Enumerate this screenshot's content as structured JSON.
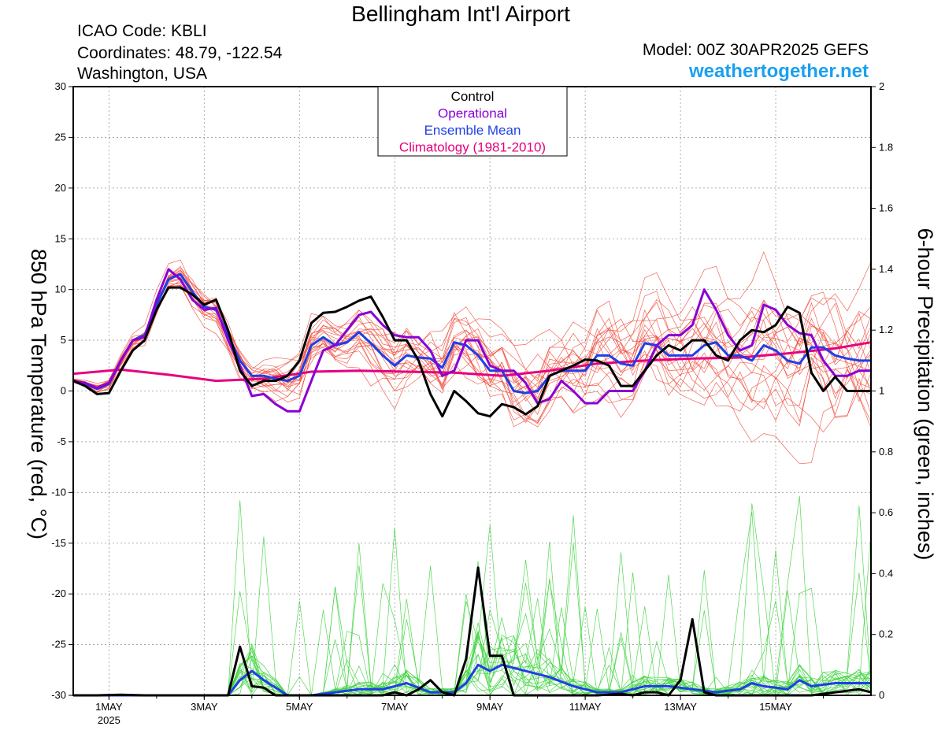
{
  "header": {
    "title": "Bellingham Int'l Airport",
    "icao": "ICAO Code: KBLI",
    "coordinates": "Coordinates: 48.79, -122.54",
    "region": "Washington, USA",
    "model": "Model: 00Z 30APR2025 GEFS",
    "site": "weathertogether.net"
  },
  "colors": {
    "control": "#000000",
    "operational": "#8a00d4",
    "ensemble_mean": "#1f3fe6",
    "climatology": "#e6007e",
    "members_temp": "#f04a3a",
    "members_precip": "#3fd43f"
  },
  "chart_data": {
    "type": "line",
    "x_unit": "day",
    "xlim": [
      0,
      16.75
    ],
    "x_note": "",
    "x_ticks": [
      {
        "x": 0.75,
        "label": "1MAY",
        "sub": "2025"
      },
      {
        "x": 2.75,
        "label": "3MAY"
      },
      {
        "x": 4.75,
        "label": "5MAY"
      },
      {
        "x": 6.75,
        "label": "7MAY"
      },
      {
        "x": 8.75,
        "label": "9MAY"
      },
      {
        "x": 10.75,
        "label": "11MAY"
      },
      {
        "x": 12.75,
        "label": "13MAY"
      },
      {
        "x": 14.75,
        "label": "15MAY"
      }
    ],
    "ylabel_left": "850 hPa Temperature (red, °C)",
    "ylabel_right": "6-hour Precipitation (green, inches)",
    "ylim_left": [
      -30,
      30
    ],
    "yticks_left": [
      30,
      25,
      20,
      15,
      10,
      5,
      0,
      -5,
      -10,
      -15,
      -20,
      -25,
      -30
    ],
    "ylim_right": [
      0,
      2
    ],
    "yticks_right": [
      "2",
      "1.8",
      "1.6",
      "1.4",
      "1.2",
      "1",
      "0.8",
      "0.6",
      "0.4",
      "0.2",
      "0"
    ],
    "grid": true,
    "legend": {
      "placement": "top-center",
      "entries": [
        {
          "label": "Control",
          "color": "#000000"
        },
        {
          "label": "Operational",
          "color": "#8a00d4"
        },
        {
          "label": "Ensemble Mean",
          "color": "#1f3fe6"
        },
        {
          "label": "Climatology (1981-2010)",
          "color": "#e6007e"
        }
      ]
    },
    "series": [
      {
        "name": "Control",
        "x": [
          0,
          0.25,
          0.5,
          0.75,
          1,
          1.25,
          1.5,
          1.75,
          2,
          2.25,
          2.5,
          2.75,
          3,
          3.25,
          3.5,
          3.75,
          4,
          4.25,
          4.5,
          4.75,
          5,
          5.25,
          5.5,
          5.75,
          6,
          6.25,
          6.5,
          6.75,
          7,
          7.25,
          7.5,
          7.75,
          8,
          8.25,
          8.5,
          8.75,
          9,
          9.25,
          9.5,
          9.75,
          10,
          10.25,
          10.5,
          10.75,
          11,
          11.25,
          11.5,
          11.75,
          12,
          12.25,
          12.5,
          12.75,
          13,
          13.25,
          13.5,
          13.75,
          14,
          14.25,
          14.5,
          14.75,
          15,
          15.25,
          15.5,
          15.75,
          16,
          16.25,
          16.5,
          16.75
        ],
        "y": [
          1,
          0.5,
          -0.3,
          -0.2,
          2,
          4,
          5,
          8,
          10.2,
          10.2,
          9.5,
          8.5,
          9,
          6,
          2,
          0.5,
          1,
          1,
          1.5,
          3,
          6.7,
          7.7,
          7.8,
          8.3,
          8.9,
          9.3,
          7.3,
          5,
          5,
          3,
          -0.3,
          -2.5,
          0,
          -1,
          -2.2,
          -2.5,
          -1.3,
          -1.6,
          -2.3,
          -1.5,
          1.5,
          2,
          2.5,
          3.1,
          3,
          2.5,
          0.5,
          0.5,
          2,
          3.5,
          4.5,
          4,
          5,
          5,
          3.5,
          3,
          5,
          6,
          5.8,
          6.5,
          8.3,
          7.7,
          1.8,
          0,
          1.4,
          0,
          0,
          0
        ]
      },
      {
        "name": "Operational",
        "x": [
          0,
          0.25,
          0.5,
          0.75,
          1,
          1.25,
          1.5,
          1.75,
          2,
          2.25,
          2.5,
          2.75,
          3,
          3.25,
          3.5,
          3.75,
          4,
          4.25,
          4.5,
          4.75,
          5,
          5.25,
          5.5,
          5.75,
          6,
          6.25,
          6.5,
          6.75,
          7,
          7.25,
          7.5,
          7.75,
          8,
          8.25,
          8.5,
          8.75,
          9,
          9.25,
          9.5,
          9.75,
          10,
          10.25,
          10.5,
          10.75,
          11,
          11.25,
          11.5,
          11.75,
          12,
          12.25,
          12.5,
          12.75,
          13,
          13.25,
          13.5,
          13.75,
          14,
          14.25,
          14.5,
          14.75,
          15,
          15.25,
          15.5,
          15.75,
          16,
          16.25,
          16.5,
          16.75
        ],
        "y": [
          1,
          0.8,
          0.3,
          0.8,
          3,
          5,
          5.3,
          9,
          12,
          11,
          9,
          8,
          8.2,
          5,
          2.5,
          -0.5,
          -0.3,
          -1.3,
          -2,
          -2,
          1,
          4,
          4.5,
          6,
          7.5,
          7.8,
          6.5,
          5.5,
          5.3,
          5.3,
          4,
          1.5,
          2,
          5,
          5,
          2.5,
          2,
          2,
          0.8,
          -1.2,
          -0.8,
          1,
          0,
          -1.2,
          -1.2,
          0,
          0,
          0,
          2,
          4.5,
          5.5,
          5.5,
          6.5,
          10,
          8,
          5.5,
          4,
          4.5,
          8.5,
          8,
          6.5,
          5.7,
          5.5,
          3,
          1.5,
          1.5,
          2,
          2
        ]
      },
      {
        "name": "Ensemble Mean",
        "x": [
          0,
          0.25,
          0.5,
          0.75,
          1,
          1.25,
          1.5,
          1.75,
          2,
          2.25,
          2.5,
          2.75,
          3,
          3.25,
          3.5,
          3.75,
          4,
          4.25,
          4.5,
          4.75,
          5,
          5.25,
          5.5,
          5.75,
          6,
          6.25,
          6.5,
          6.75,
          7,
          7.25,
          7.5,
          7.75,
          8,
          8.25,
          8.5,
          8.75,
          9,
          9.25,
          9.5,
          9.75,
          10,
          10.25,
          10.5,
          10.75,
          11,
          11.25,
          11.5,
          11.75,
          12,
          12.25,
          12.5,
          12.75,
          13,
          13.25,
          13.5,
          13.75,
          14,
          14.25,
          14.5,
          14.75,
          15,
          15.25,
          15.5,
          15.75,
          16,
          16.25,
          16.5,
          16.75
        ],
        "y": [
          1,
          0.7,
          0.2,
          0.7,
          3,
          5,
          5.5,
          8.5,
          11,
          11.5,
          9.8,
          8.3,
          8,
          5.5,
          3,
          1.5,
          1.5,
          1.2,
          1,
          1.5,
          4.5,
          5.3,
          4.5,
          4.8,
          5.8,
          4.7,
          3.5,
          2.5,
          3.5,
          3.3,
          3.2,
          2.3,
          4.8,
          4.5,
          3.5,
          2,
          2,
          0,
          -0.2,
          0,
          1.5,
          2,
          2,
          2,
          3.5,
          3.5,
          2.7,
          2.5,
          4.7,
          4.5,
          3.5,
          3.5,
          3.5,
          4.5,
          4.8,
          3.5,
          3.5,
          3,
          4.5,
          4,
          3,
          2.7,
          4.3,
          4.3,
          3.5,
          3.2,
          3,
          3
        ]
      },
      {
        "name": "Climatology (1981-2010)",
        "x": [
          0,
          1,
          2,
          3,
          4,
          5,
          6,
          7,
          8,
          9,
          10,
          11,
          12,
          13,
          14,
          15,
          16,
          16.75
        ],
        "y": [
          1.7,
          2.1,
          1.6,
          1.0,
          1.2,
          1.9,
          2.0,
          1.9,
          1.8,
          1.5,
          2.0,
          2.7,
          3.0,
          3.2,
          3.3,
          3.7,
          4.2,
          4.8
        ]
      }
    ],
    "precipitation_series": [
      {
        "name": "Control",
        "x": [
          0,
          0.5,
          1,
          1.5,
          2,
          2.5,
          2.75,
          3,
          3.25,
          3.5,
          3.75,
          4,
          4.25,
          4.5,
          5,
          5.5,
          6,
          6.5,
          6.75,
          7,
          7.25,
          7.5,
          7.75,
          8,
          8.25,
          8.5,
          8.75,
          9,
          9.25,
          9.5,
          10,
          10.5,
          11,
          11.5,
          11.75,
          12,
          12.25,
          12.5,
          12.75,
          13,
          13.25,
          13.5,
          14,
          14.5,
          15,
          15.5,
          16,
          16.5,
          16.75
        ],
        "y": [
          0,
          0,
          0.002,
          0,
          0,
          0,
          0,
          0,
          0,
          0.16,
          0.03,
          0.025,
          0,
          0,
          0,
          0,
          0,
          0,
          0.01,
          0,
          0.02,
          0.05,
          0.01,
          0,
          0.12,
          0.42,
          0.13,
          0.13,
          0,
          0,
          0,
          0,
          0,
          0.005,
          0,
          0.01,
          0.01,
          0,
          0.05,
          0.25,
          0.01,
          0,
          0,
          0,
          0,
          0,
          0.01,
          0.02,
          0.01
        ]
      },
      {
        "name": "Ensemble Mean",
        "x": [
          0,
          1,
          2,
          3,
          3.25,
          3.5,
          3.75,
          4,
          4.5,
          5,
          5.5,
          6,
          6.5,
          7,
          7.5,
          8,
          8.25,
          8.5,
          8.75,
          9,
          9.5,
          10,
          10.5,
          11,
          11.5,
          12,
          12.5,
          13,
          13.5,
          14,
          14.25,
          14.5,
          15,
          15.25,
          15.5,
          16,
          16.5,
          16.75
        ],
        "y": [
          0,
          0,
          0,
          0,
          0,
          0.05,
          0.08,
          0.05,
          0,
          0,
          0.01,
          0.02,
          0.02,
          0.04,
          0.01,
          0.01,
          0.04,
          0.1,
          0.08,
          0.1,
          0.08,
          0.06,
          0.03,
          0.01,
          0.01,
          0.03,
          0.03,
          0.02,
          0.01,
          0.02,
          0.04,
          0.03,
          0.02,
          0.05,
          0.03,
          0.04,
          0.04,
          0.04
        ]
      }
    ]
  }
}
